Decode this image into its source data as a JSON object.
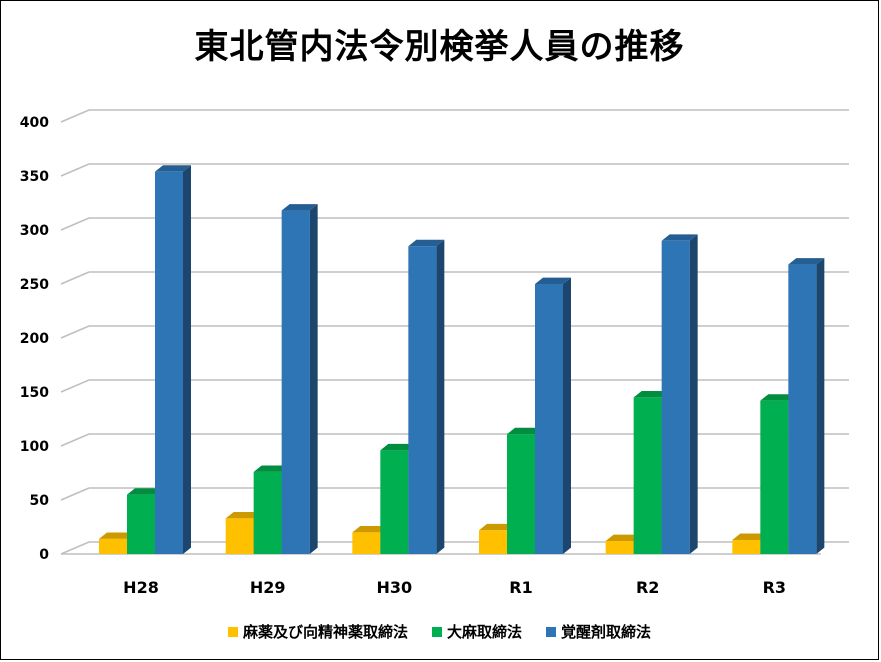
{
  "chart_data": {
    "type": "bar",
    "title": "東北管内法令別検挙人員の推移",
    "categories": [
      "H28",
      "H29",
      "H30",
      "R1",
      "R2",
      "R3"
    ],
    "series": [
      {
        "name": "麻薬及び向精神薬取締法",
        "color": "#FFC000",
        "values": [
          14,
          33,
          20,
          22,
          12,
          13
        ]
      },
      {
        "name": "大麻取締法",
        "color": "#00B050",
        "values": [
          55,
          76,
          96,
          111,
          145,
          142
        ]
      },
      {
        "name": "覚醒剤取締法",
        "color": "#2E75B6",
        "values": [
          354,
          318,
          285,
          250,
          290,
          268
        ]
      }
    ],
    "ylim": [
      0,
      400
    ],
    "yticks": [
      "0",
      "50",
      "100",
      "150",
      "200",
      "250",
      "300",
      "350",
      "400"
    ],
    "grid": true,
    "legend_position": "bottom"
  }
}
